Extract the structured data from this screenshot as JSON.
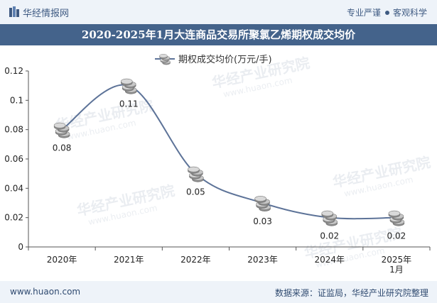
{
  "header": {
    "brand": "华经情报网",
    "slogan_left": "专业严谨",
    "slogan_right": "客观科学"
  },
  "title": "2020-2025年1月大连商品交易所聚氯乙烯期权成交均价",
  "chart_data": {
    "type": "line",
    "title": "2020-2025年1月大连商品交易所聚氯乙烯期权成交均价",
    "categories": [
      "2020年",
      "2021年",
      "2022年",
      "2023年",
      "2024年",
      "2025年\n1月"
    ],
    "series": [
      {
        "name": "期权成交均价(万元/手)",
        "values": [
          0.08,
          0.11,
          0.05,
          0.03,
          0.02,
          0.02
        ]
      }
    ],
    "data_labels": [
      "0.08",
      "0.11",
      "0.05",
      "0.03",
      "0.02",
      "0.02"
    ],
    "y_ticks": [
      "0",
      "0.02",
      "0.04",
      "0.06",
      "0.08",
      "0.1",
      "0.12"
    ],
    "ylim": [
      0,
      0.12
    ],
    "grid": false,
    "legend_position": "top",
    "line_color": "#5d7398",
    "marker": "coin-stack"
  },
  "watermark": {
    "text": "华经产业研究院",
    "url": "www.huaon.com"
  },
  "footer": {
    "site": "www.huaon.com",
    "source": "数据来源：证监局，华经产业研究院整理"
  }
}
